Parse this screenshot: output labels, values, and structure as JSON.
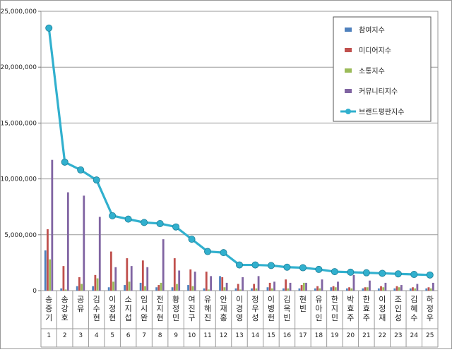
{
  "chart_data": {
    "type": "bar",
    "title": "",
    "xlabel": "",
    "ylabel": "",
    "ylim": [
      0,
      25000000
    ],
    "yticks": [
      "0",
      "5,000,000",
      "10,000,000",
      "15,000,000",
      "20,000,000",
      "25,000,000"
    ],
    "grid": true,
    "legend_position": "top-right",
    "categories": [
      "송중기",
      "송강호",
      "공유",
      "김수현",
      "이정현",
      "소지섭",
      "임시완",
      "전지현",
      "황정민",
      "여진구",
      "유해진",
      "안재홍",
      "이경영",
      "정우성",
      "이병헌",
      "김옥빈",
      "현빈",
      "유아인",
      "한지민",
      "박효주",
      "한효주",
      "이정재",
      "조인성",
      "김혜수",
      "하정우"
    ],
    "ranks": [
      "1",
      "2",
      "3",
      "4",
      "5",
      "6",
      "7",
      "8",
      "9",
      "10",
      "11",
      "12",
      "13",
      "14",
      "15",
      "16",
      "17",
      "18",
      "19",
      "20",
      "21",
      "22",
      "23",
      "24",
      "25"
    ],
    "series": [
      {
        "name": "참여지수",
        "kind": "bar",
        "color": "#4F81BD",
        "values": [
          3600000,
          200000,
          400000,
          400000,
          300000,
          500000,
          700000,
          300000,
          300000,
          500000,
          200000,
          1300000,
          200000,
          200000,
          300000,
          200000,
          200000,
          200000,
          300000,
          200000,
          200000,
          200000,
          200000,
          200000,
          200000
        ]
      },
      {
        "name": "미디어지수",
        "kind": "bar",
        "color": "#C0504D",
        "values": [
          5500000,
          2200000,
          1200000,
          1400000,
          3500000,
          2900000,
          2700000,
          500000,
          2900000,
          1900000,
          1700000,
          1200000,
          600000,
          600000,
          700000,
          1000000,
          500000,
          400000,
          400000,
          300000,
          300000,
          400000,
          400000,
          300000,
          300000
        ]
      },
      {
        "name": "소통지수",
        "kind": "bar",
        "color": "#9BBB59",
        "values": [
          2800000,
          100000,
          600000,
          1100000,
          800000,
          800000,
          400000,
          700000,
          600000,
          400000,
          100000,
          300000,
          100000,
          200000,
          200000,
          200000,
          700000,
          200000,
          300000,
          200000,
          300000,
          300000,
          300000,
          200000,
          200000
        ]
      },
      {
        "name": "커뮤니티지수",
        "kind": "bar",
        "color": "#8064A2",
        "values": [
          11700000,
          8800000,
          8500000,
          6600000,
          2100000,
          2200000,
          2100000,
          4600000,
          1800000,
          1700000,
          1300000,
          700000,
          1200000,
          1300000,
          800000,
          700000,
          700000,
          1000000,
          800000,
          1400000,
          900000,
          700000,
          500000,
          600000,
          700000
        ]
      },
      {
        "name": "브랜드평판지수",
        "kind": "line",
        "color": "#31B0CE",
        "values": [
          23500000,
          11500000,
          10800000,
          9900000,
          6700000,
          6400000,
          6100000,
          6000000,
          5700000,
          4600000,
          3500000,
          3400000,
          2300000,
          2300000,
          2250000,
          2100000,
          2050000,
          1900000,
          1700000,
          1650000,
          1600000,
          1550000,
          1500000,
          1450000,
          1400000
        ]
      }
    ]
  }
}
